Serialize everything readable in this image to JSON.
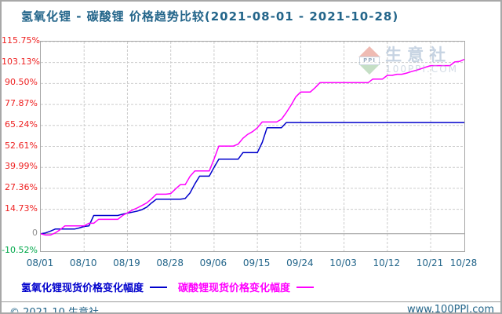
{
  "title": "氢氧化锂 - 碳酸锂 价格趋势比较(2021-08-01 - 2021-10-28)",
  "watermark": {
    "logo_text": "PPI",
    "name": "生意社",
    "site": "100PPI.COM"
  },
  "footer": {
    "left": "© 2021.10 生意社",
    "right": "www.100PPI.com"
  },
  "colors": {
    "title": "#23658a",
    "x_label": "#23658a",
    "y_label_positive": "#ee2222",
    "y_label_zero": "#909090",
    "y_label_negative": "#00a84a",
    "grid": "#cccccc",
    "frame": "#a6a6a6",
    "zero_line": "#999999",
    "series_hydroxide": "#0000cc",
    "series_carbonate": "#ff00ff"
  },
  "chart_data": {
    "type": "line",
    "title": "氢氧化锂 - 碳酸锂 价格趋势比较(2021-08-01 - 2021-10-28)",
    "x_start": "2021-08-01",
    "x_end": "2021-10-28",
    "x_unit": "day",
    "x_tick_labels": [
      "08/01",
      "08/10",
      "08/19",
      "08/28",
      "09/06",
      "09/15",
      "09/24",
      "10/03",
      "10/12",
      "10/21",
      "10/28"
    ],
    "x_tick_days": [
      0,
      9,
      18,
      27,
      36,
      45,
      54,
      63,
      72,
      81,
      88
    ],
    "y_tick_labels": [
      "115.75%",
      "103.13%",
      "90.50%",
      "77.87%",
      "65.24%",
      "52.61%",
      "39.99%",
      "27.36%",
      "14.73%",
      "0",
      "-10.52%"
    ],
    "y_ticks": [
      115.75,
      103.13,
      90.5,
      77.87,
      65.24,
      52.61,
      39.99,
      27.36,
      14.73,
      0,
      -10.52
    ],
    "ylim": [
      -10.52,
      115.75
    ],
    "grid": true,
    "legend_position": "bottom",
    "series": [
      {
        "name": "氢氧化锂现货价格变化幅度",
        "color": "#0000cc",
        "values": [
          0,
          0.5,
          1.6,
          2.8,
          2.8,
          2.8,
          2.8,
          2.8,
          3.5,
          4.4,
          4.7,
          11.0,
          11.0,
          11.0,
          11.0,
          11.0,
          11.0,
          11.8,
          12.4,
          13.0,
          13.6,
          14.5,
          16.0,
          18.5,
          20.8,
          20.8,
          20.8,
          20.8,
          20.8,
          20.8,
          21.2,
          24.5,
          30.0,
          34.7,
          34.7,
          34.7,
          40.0,
          44.9,
          44.9,
          44.9,
          44.9,
          44.9,
          48.9,
          48.9,
          48.9,
          48.9,
          55.0,
          63.8,
          63.8,
          63.8,
          63.8,
          67.0,
          67.0,
          67.0,
          67.0,
          67.0,
          67.0,
          67.0,
          67.0,
          67.0,
          67.0,
          67.0,
          67.0,
          67.0,
          67.0,
          67.0,
          67.0,
          67.0,
          67.0,
          67.0,
          67.0,
          67.0,
          67.0,
          67.0,
          67.0,
          67.0,
          67.0,
          67.0,
          67.0,
          67.0,
          67.0,
          67.0,
          67.0,
          67.0,
          67.0,
          67.0,
          67.0,
          67.0,
          67.0
        ]
      },
      {
        "name": "碳酸锂现货价格变化幅度",
        "color": "#ff00ff",
        "values": [
          0,
          -0.8,
          -0.8,
          0.5,
          2.4,
          4.7,
          4.7,
          4.7,
          4.7,
          4.7,
          6.3,
          6.3,
          8.7,
          8.7,
          8.7,
          8.7,
          8.7,
          11.0,
          12.6,
          14.2,
          15.5,
          17.0,
          18.5,
          21.0,
          23.8,
          23.8,
          23.8,
          24.2,
          27.0,
          29.6,
          29.6,
          34.5,
          37.8,
          37.8,
          37.8,
          37.8,
          45.0,
          52.8,
          52.8,
          52.8,
          52.8,
          54.0,
          57.5,
          59.9,
          61.5,
          63.8,
          67.3,
          67.3,
          67.3,
          67.3,
          69.0,
          73.0,
          77.5,
          82.5,
          85.4,
          85.4,
          85.4,
          88.0,
          91.0,
          91.0,
          91.0,
          91.0,
          91.0,
          91.0,
          91.0,
          91.0,
          91.0,
          91.0,
          91.0,
          93.2,
          93.2,
          93.2,
          95.4,
          95.4,
          96.1,
          96.1,
          96.8,
          97.7,
          98.5,
          99.4,
          100.4,
          101.3,
          101.3,
          101.3,
          101.3,
          101.3,
          103.5,
          103.8,
          105.1
        ]
      }
    ]
  }
}
